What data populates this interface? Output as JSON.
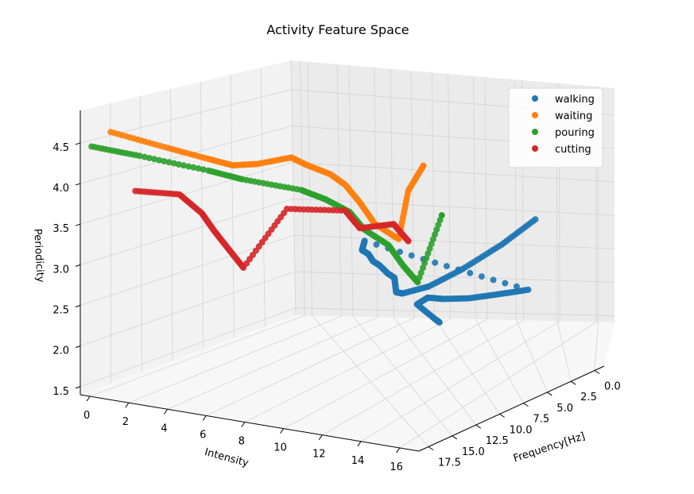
{
  "chart_data": {
    "type": "scatter",
    "title": "Activity Feature Space",
    "xlabel": "Frequency[Hz]",
    "ylabel": "Intensity",
    "zlabel": "Periodicity",
    "xlim": [
      -1,
      18.5
    ],
    "ylim": [
      -0.5,
      17
    ],
    "zlim": [
      1.4,
      4.9
    ],
    "x_ticks": [
      "0.0",
      "2.5",
      "5.0",
      "7.5",
      "10.0",
      "12.5",
      "15.0",
      "17.5"
    ],
    "y_ticks": [
      "0",
      "2",
      "4",
      "6",
      "8",
      "10",
      "12",
      "14",
      "16"
    ],
    "z_ticks": [
      "1.5",
      "2.0",
      "2.5",
      "3.0",
      "3.5",
      "4.0",
      "4.5"
    ],
    "grid": true,
    "legend_position": "top-right",
    "series": [
      {
        "name": "walking",
        "color": "#1f77b4",
        "points": [
          [
            0.5,
            13.5,
            2.95
          ],
          [
            2,
            12.5,
            2.7
          ],
          [
            4,
            11.5,
            2.5
          ],
          [
            6,
            10.8,
            2.4
          ],
          [
            8,
            10.5,
            2.45
          ],
          [
            9.5,
            11,
            2.6
          ],
          [
            10.5,
            11.5,
            2.8
          ],
          [
            11.5,
            12,
            3.0
          ],
          [
            12.5,
            12.2,
            3.15
          ],
          [
            13.5,
            12.3,
            3.35
          ],
          [
            14.5,
            12.5,
            3.5
          ],
          [
            15.5,
            12.8,
            3.7
          ],
          [
            16.5,
            13,
            3.85
          ],
          [
            17,
            13.4,
            4.05
          ],
          [
            3,
            14.5,
            2.2
          ],
          [
            5,
            14,
            2.3
          ],
          [
            7,
            13.5,
            2.4
          ],
          [
            9,
            13.2,
            2.55
          ],
          [
            11,
            13.5,
            2.75
          ],
          [
            13,
            14,
            2.85
          ],
          [
            14,
            15.5,
            2.8
          ],
          [
            15.5,
            16.5,
            2.95
          ]
        ]
      },
      {
        "name": "waiting",
        "color": "#ff7f0e",
        "points": [
          [
            17.5,
            0.5,
            4.65
          ],
          [
            17,
            3,
            4.6
          ],
          [
            16.5,
            5,
            4.55
          ],
          [
            16,
            6,
            4.5
          ],
          [
            15.5,
            7,
            4.55
          ],
          [
            15,
            8.5,
            4.7
          ],
          [
            14.5,
            9,
            4.6
          ],
          [
            14,
            10,
            4.5
          ],
          [
            13.5,
            10.5,
            4.35
          ],
          [
            13,
            11,
            4.1
          ],
          [
            12.5,
            11.5,
            3.8
          ],
          [
            12,
            12.5,
            3.6
          ],
          [
            12,
            13,
            4.3
          ],
          [
            12,
            13.8,
            4.7
          ]
        ]
      },
      {
        "name": "pouring",
        "color": "#2ca02c",
        "points": [
          [
            18,
            -0.2,
            4.45
          ],
          [
            17.5,
            2,
            4.45
          ],
          [
            16.5,
            5,
            4.4
          ],
          [
            16,
            6.5,
            4.35
          ],
          [
            15,
            9,
            4.3
          ],
          [
            14.5,
            10,
            4.2
          ],
          [
            14,
            11,
            4.05
          ],
          [
            13.5,
            11.5,
            3.8
          ],
          [
            13,
            12.5,
            3.6
          ],
          [
            12.5,
            13,
            3.3
          ],
          [
            12,
            13.5,
            3.05
          ],
          [
            11.5,
            14.5,
            4.0
          ]
        ]
      },
      {
        "name": "cutting",
        "color": "#d62728",
        "points": [
          [
            17,
            1.5,
            3.95
          ],
          [
            16.5,
            3.5,
            4.0
          ],
          [
            16.2,
            4.5,
            3.8
          ],
          [
            16,
            5,
            3.6
          ],
          [
            15.5,
            5.5,
            3.35
          ],
          [
            15,
            6,
            3.1
          ],
          [
            14.5,
            8,
            3.95
          ],
          [
            13.5,
            10.5,
            4.0
          ],
          [
            13,
            11,
            3.75
          ],
          [
            12.5,
            12.5,
            3.85
          ],
          [
            12,
            13,
            3.6
          ]
        ]
      }
    ]
  }
}
